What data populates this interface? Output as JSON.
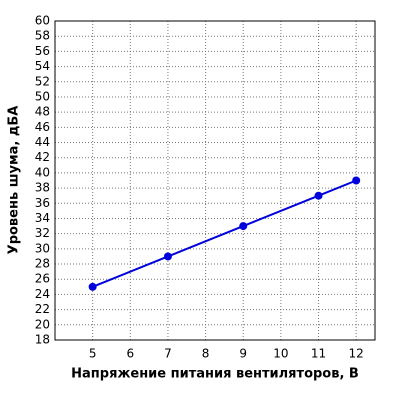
{
  "chart_data": {
    "type": "line",
    "x_label": "Напряжение питания вентиляторов, В",
    "y_label": "Уровень шума, дБА",
    "xlim": [
      4,
      12.5
    ],
    "xticks": [
      5,
      6,
      7,
      8,
      9,
      10,
      11,
      12
    ],
    "ylim": [
      18,
      60
    ],
    "yticks": [
      18,
      20,
      22,
      24,
      26,
      28,
      30,
      32,
      34,
      36,
      38,
      40,
      42,
      44,
      46,
      48,
      50,
      52,
      54,
      56,
      58,
      60
    ],
    "grid": true,
    "series": [
      {
        "color": "#0000dd",
        "x": [
          5,
          7,
          9,
          11,
          12
        ],
        "values": [
          25,
          29,
          33,
          37,
          39
        ]
      }
    ]
  }
}
